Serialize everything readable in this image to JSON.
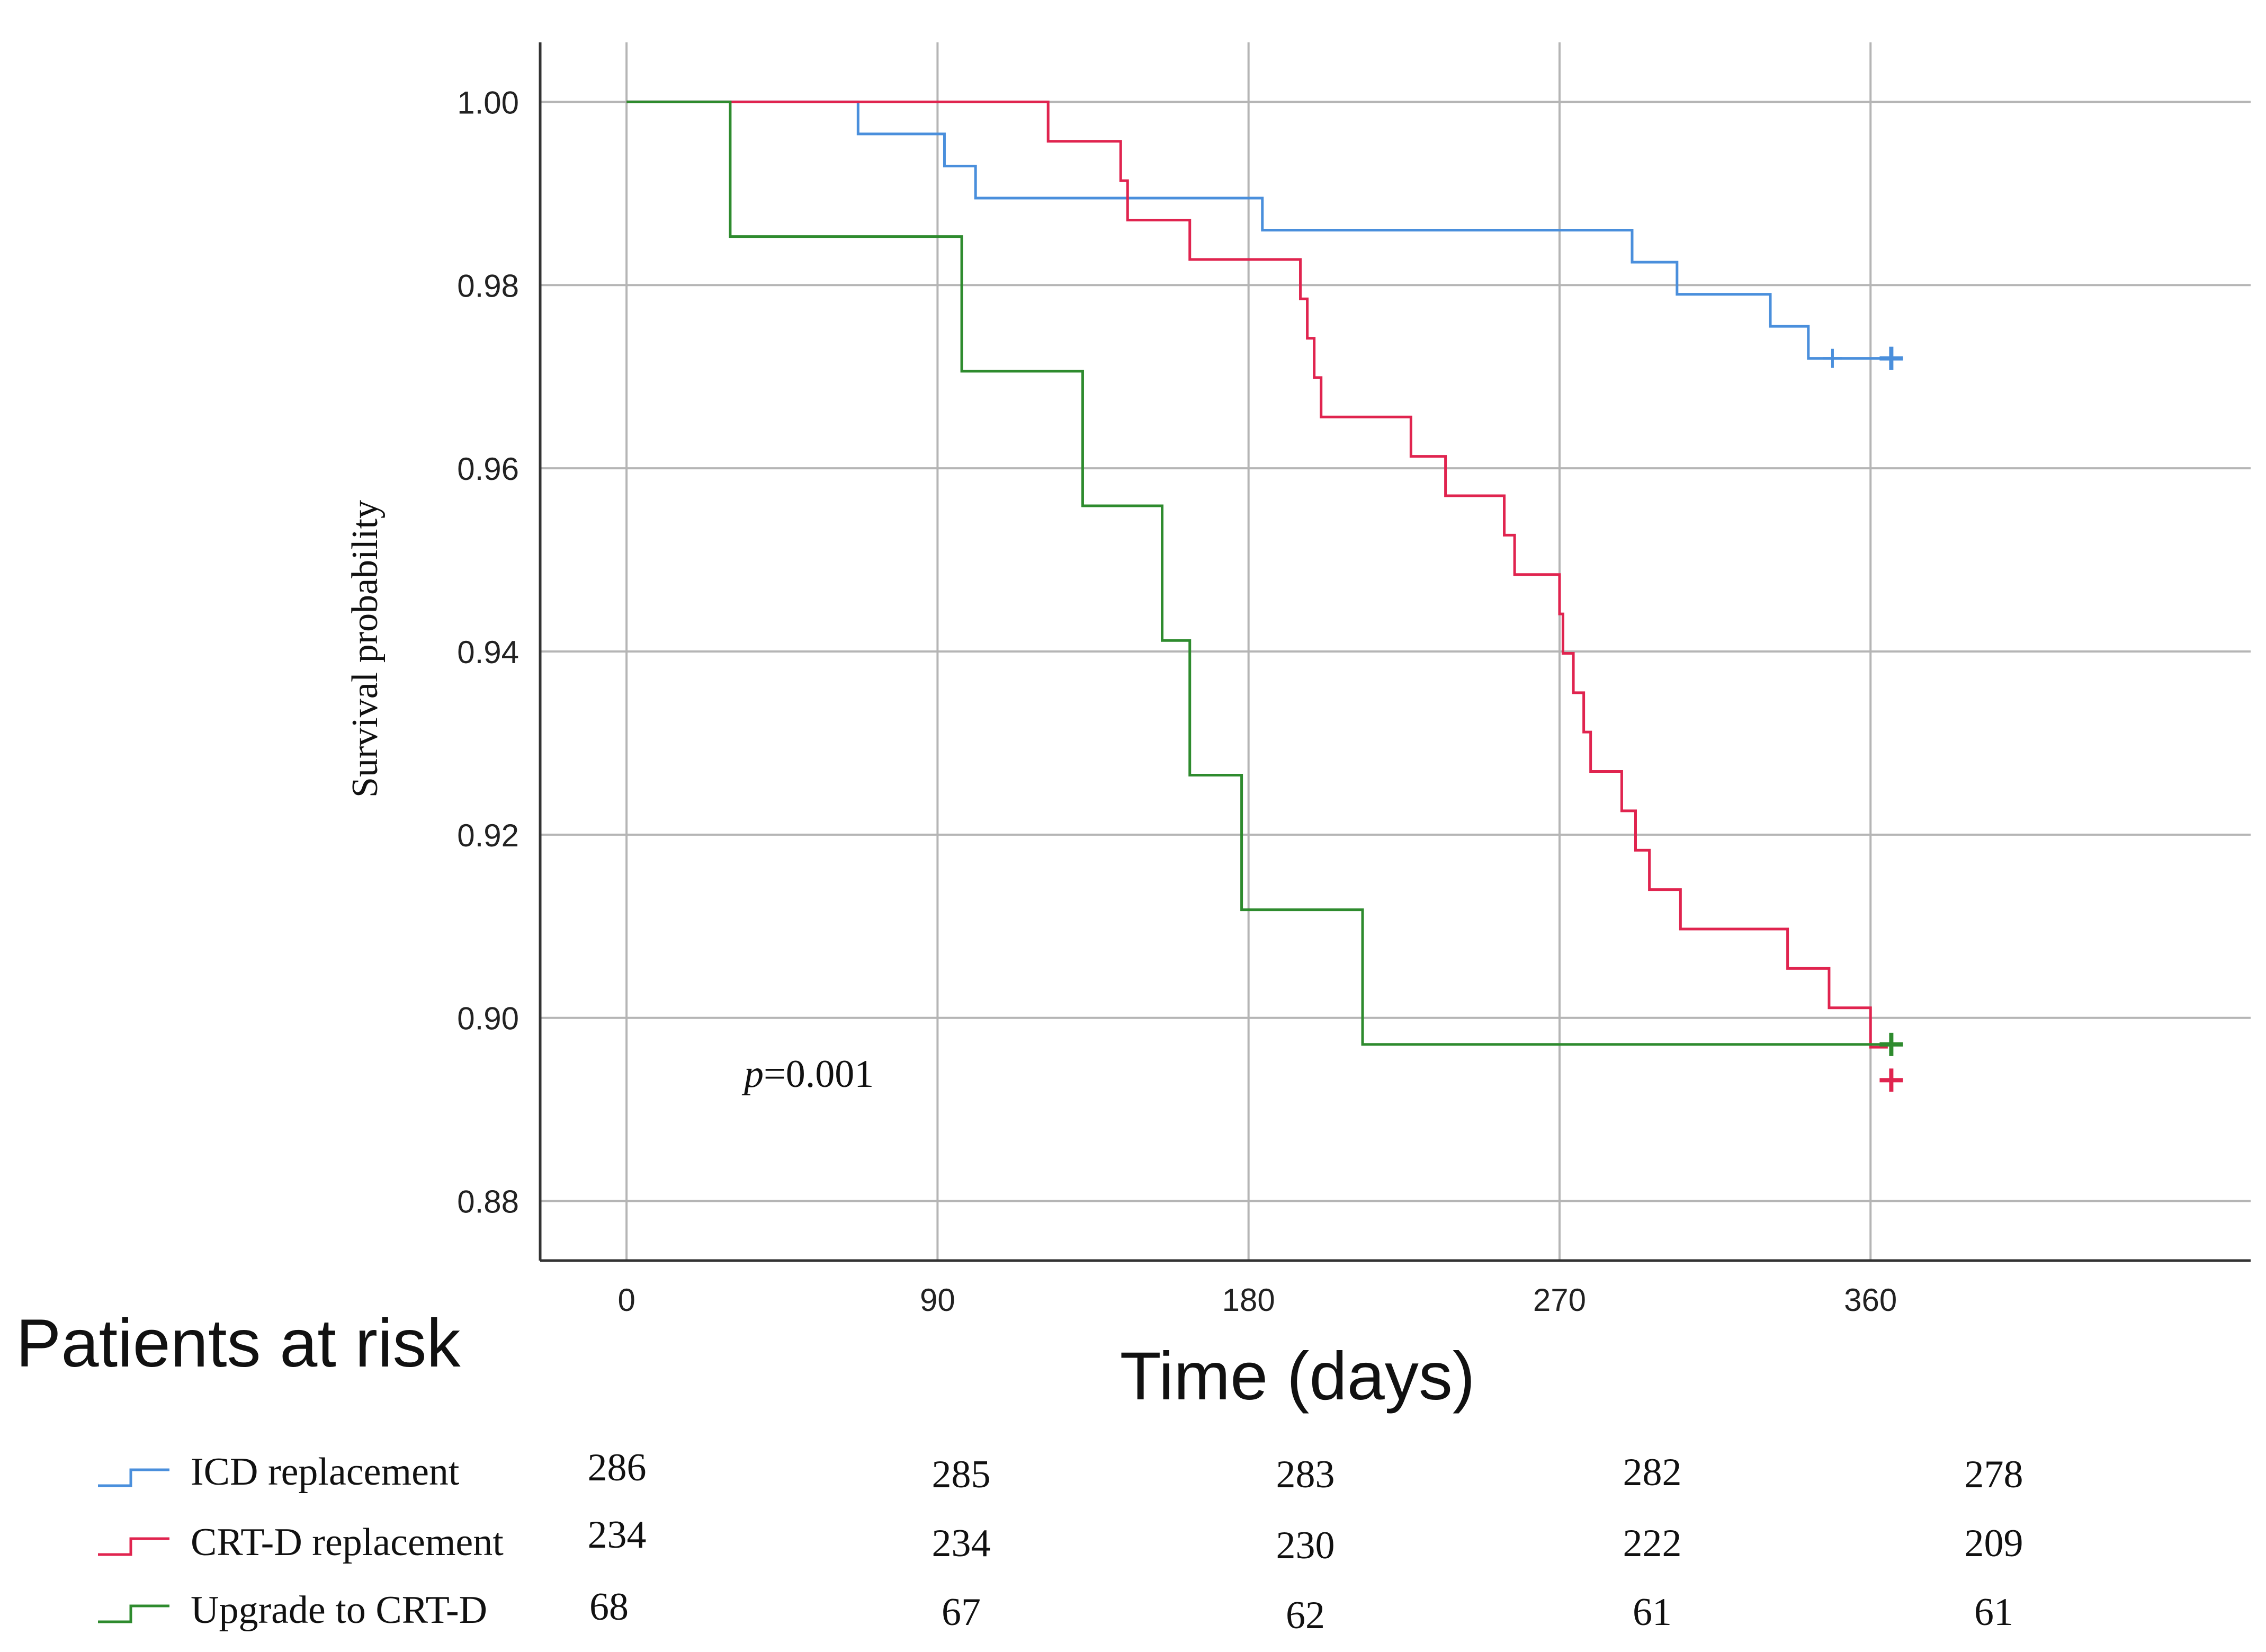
{
  "chart_data": {
    "type": "line",
    "subtype": "kaplan-meier step",
    "ylabel": "Survival probability",
    "xlabel": "Time (days)",
    "xlim": [
      -25,
      470
    ],
    "ylim": [
      0.8735,
      1.0065
    ],
    "x_ticks": [
      0,
      90,
      180,
      270,
      360
    ],
    "y_ticks": [
      0.88,
      0.9,
      0.92,
      0.94,
      0.96,
      0.98,
      1.0
    ],
    "y_tick_labels": [
      "0.88",
      "0.90",
      "0.92",
      "0.94",
      "0.96",
      "0.98",
      "1.00"
    ],
    "grid": true,
    "annotation": {
      "prefix": "p",
      "value": "=0.001",
      "x": 30,
      "y": 0.8935
    },
    "series": [
      {
        "name": "ICD replacement",
        "color": "#4a8fdc",
        "steps": [
          [
            0,
            1.0
          ],
          [
            67,
            0.9965
          ],
          [
            92,
            0.993
          ],
          [
            101,
            0.9895
          ],
          [
            184,
            0.986
          ],
          [
            291,
            0.9825
          ],
          [
            304,
            0.979
          ],
          [
            331,
            0.9755
          ],
          [
            342,
            0.972
          ],
          [
            365,
            0.972
          ]
        ],
        "censored": [
          [
            349,
            0.972
          ],
          [
            366,
            0.972
          ]
        ]
      },
      {
        "name": "CRT-D replacement",
        "color": "#e0244f",
        "steps": [
          [
            0,
            1.0
          ],
          [
            122,
            0.9957
          ],
          [
            143,
            0.9914
          ],
          [
            145,
            0.9871
          ],
          [
            163,
            0.9828
          ],
          [
            195,
            0.9785
          ],
          [
            197,
            0.9742
          ],
          [
            199,
            0.9699
          ],
          [
            201,
            0.9656
          ],
          [
            227,
            0.9613
          ],
          [
            237,
            0.957
          ],
          [
            254,
            0.9527
          ],
          [
            257,
            0.9484
          ],
          [
            270,
            0.9441
          ],
          [
            271,
            0.9398
          ],
          [
            274,
            0.9355
          ],
          [
            277,
            0.9312
          ],
          [
            279,
            0.9269
          ],
          [
            288,
            0.9226
          ],
          [
            292,
            0.9183
          ],
          [
            296,
            0.914
          ],
          [
            305,
            0.9097
          ],
          [
            336,
            0.9054
          ],
          [
            348,
            0.9011
          ],
          [
            360,
            0.8968
          ],
          [
            365,
            0.8968
          ]
        ],
        "censored": [
          [
            366,
            0.8932
          ]
        ]
      },
      {
        "name": "Upgrade to CRT-D",
        "color": "#2e8b2e",
        "steps": [
          [
            0,
            1.0
          ],
          [
            30,
            0.9853
          ],
          [
            97,
            0.9706
          ],
          [
            132,
            0.9559
          ],
          [
            155,
            0.9412
          ],
          [
            163,
            0.9265
          ],
          [
            178,
            0.9118
          ],
          [
            213,
            0.8971
          ],
          [
            365,
            0.8971
          ]
        ],
        "censored": [
          [
            366,
            0.8971
          ]
        ]
      }
    ]
  },
  "risk_table": {
    "title": "Patients at risk",
    "rows": [
      {
        "name": "ICD replacement",
        "color": "#4a8fdc",
        "values": [
          "286",
          "285",
          "283",
          "282",
          "278"
        ]
      },
      {
        "name": "CRT-D replacement",
        "color": "#e0244f",
        "values": [
          "234",
          "234",
          "230",
          "222",
          "209"
        ]
      },
      {
        "name": "Upgrade to CRT-D",
        "color": "#2e8b2e",
        "values": [
          "68",
          "67",
          "62",
          "61",
          "61"
        ]
      }
    ]
  }
}
